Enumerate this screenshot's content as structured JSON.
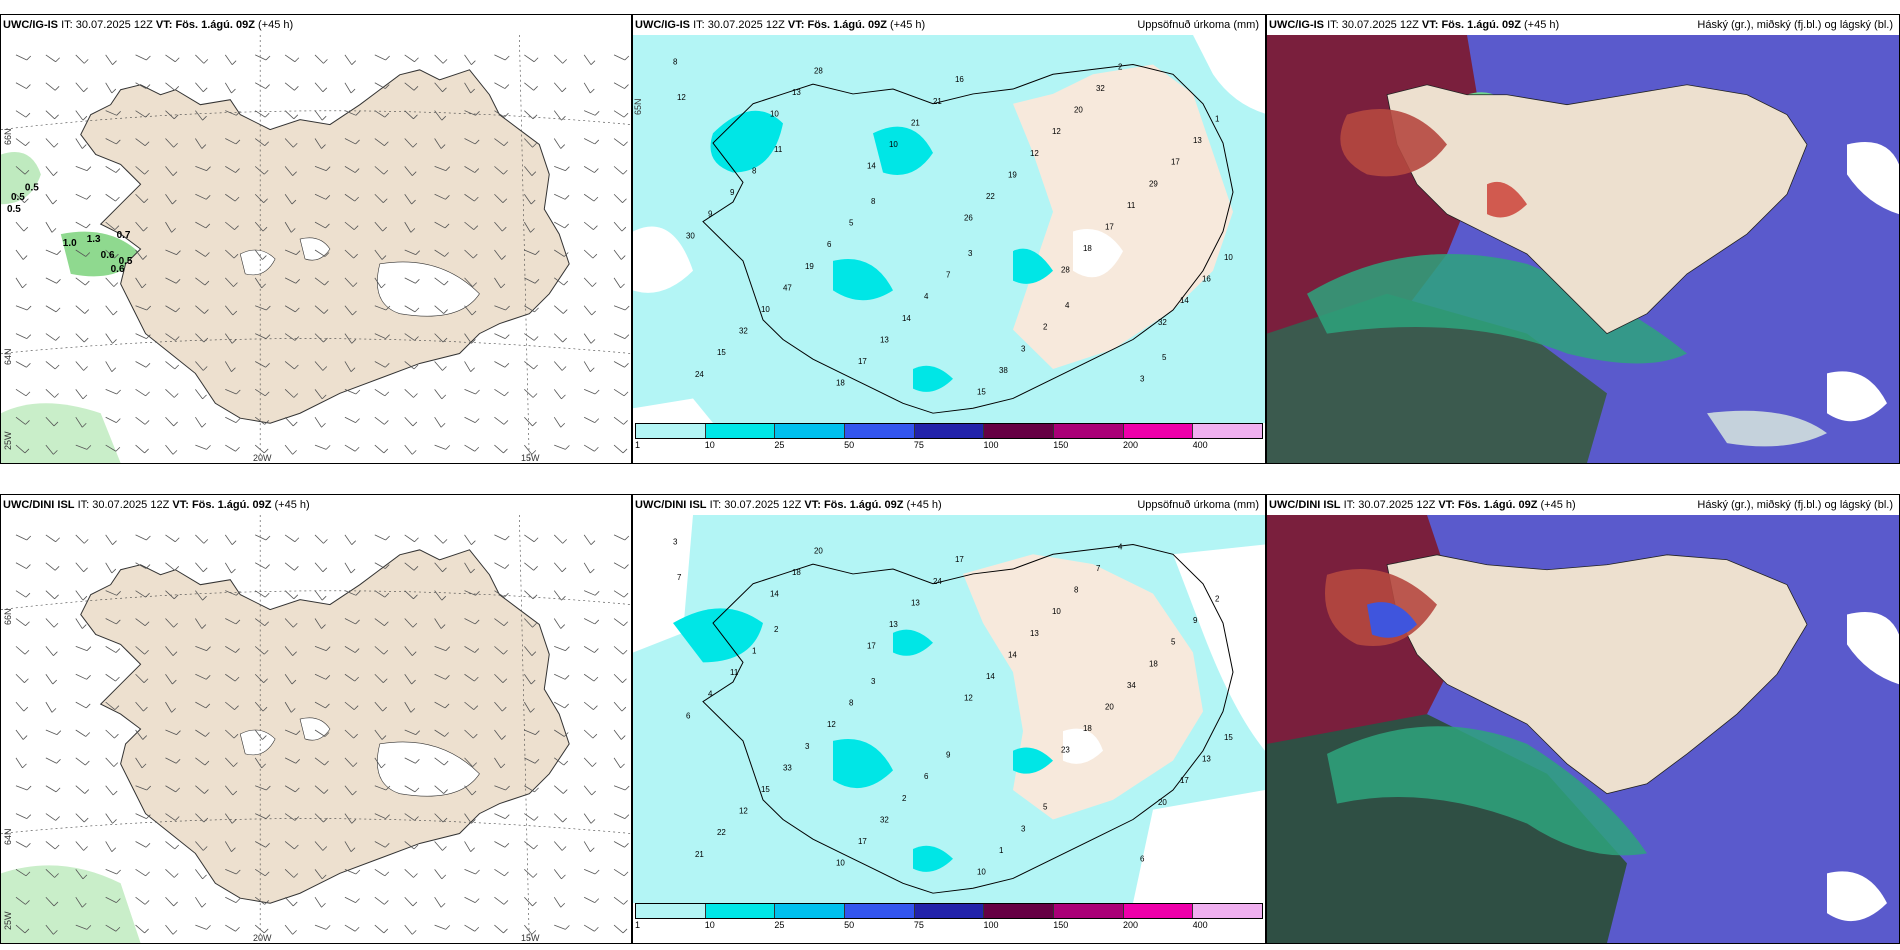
{
  "common": {
    "issue_time_label": "IT:",
    "issue_time": "30.07.2025 12Z",
    "valid_time_label": "VT:",
    "valid_time": "Fös. 1.ágú. 09Z",
    "lead": "(+45 h)"
  },
  "rows": [
    {
      "model": "UWC/IG-IS",
      "panels": [
        {
          "type": "wind",
          "right_title": ""
        },
        {
          "type": "precip",
          "right_title": "Uppsöfnuð úrkoma (mm)"
        },
        {
          "type": "cloud",
          "right_title": "Háský (gr.), miðský (fj.bl.) og lágský (bl.)"
        }
      ]
    },
    {
      "model": "UWC/DINI ISL",
      "panels": [
        {
          "type": "wind",
          "right_title": ""
        },
        {
          "type": "precip",
          "right_title": "Uppsöfnuð úrkoma (mm)"
        },
        {
          "type": "cloud",
          "right_title": "Háský (gr.), miðský (fj.bl.) og lágský (bl.)"
        }
      ]
    }
  ],
  "cloud_panel_model_top": "UWC/IG-IS",
  "cloud_panel_model_bottom": "UWC/DINI ISL",
  "axis": {
    "lat66": "66N",
    "lat64": "64N",
    "lon25": "25W",
    "lon20": "20W",
    "lon15": "15W",
    "lat65r": "65N"
  },
  "colorbar": {
    "ticks": [
      "1",
      "10",
      "25",
      "50",
      "75",
      "100",
      "150",
      "200",
      "400"
    ],
    "colors": [
      "#b3f5f5",
      "#00e6e6",
      "#00c0ee",
      "#3355ee",
      "#2222aa",
      "#660044",
      "#aa0077",
      "#ee00aa",
      "#f0b0f0"
    ]
  },
  "colors": {
    "land": "#ede0cf",
    "precip_light": "#b3f5f5",
    "precip_mid": "#00e6e6",
    "rain_green": "#a8e6a8"
  },
  "wind_values_top": [
    "0.5",
    "0.5",
    "0.5",
    "1.0",
    "1.3",
    "0.7",
    "0.6",
    "0.6",
    "0.5"
  ],
  "precip_values_top": [
    "8",
    "10",
    "14",
    "26",
    "28",
    "32",
    "24",
    "13",
    "10",
    "22",
    "18",
    "14",
    "15",
    "28",
    "21",
    "19",
    "17",
    "16",
    "32",
    "18",
    "21",
    "12",
    "11",
    "10",
    "10",
    "17",
    "16",
    "12",
    "29",
    "30",
    "47",
    "13",
    "15",
    "20",
    "17",
    "9",
    "19",
    "14",
    "38",
    "32",
    "13",
    "9",
    "6",
    "4",
    "3",
    "2",
    "1",
    "8",
    "5",
    "7",
    "2",
    "3",
    "12",
    "11",
    "8",
    "3",
    "4",
    "5"
  ],
  "precip_values_bottom": [
    "3",
    "14",
    "17",
    "12",
    "23",
    "20",
    "21",
    "18",
    "13",
    "14",
    "18",
    "17",
    "22",
    "20",
    "13",
    "14",
    "20",
    "13",
    "12",
    "10",
    "24",
    "13",
    "34",
    "15",
    "15",
    "17",
    "17",
    "10",
    "18",
    "6",
    "33",
    "32",
    "10",
    "8",
    "5",
    "4",
    "3",
    "2",
    "1",
    "7",
    "9",
    "11",
    "12",
    "6",
    "3",
    "4",
    "2",
    "1",
    "8",
    "9",
    "5",
    "6",
    "7",
    "2",
    "3"
  ]
}
